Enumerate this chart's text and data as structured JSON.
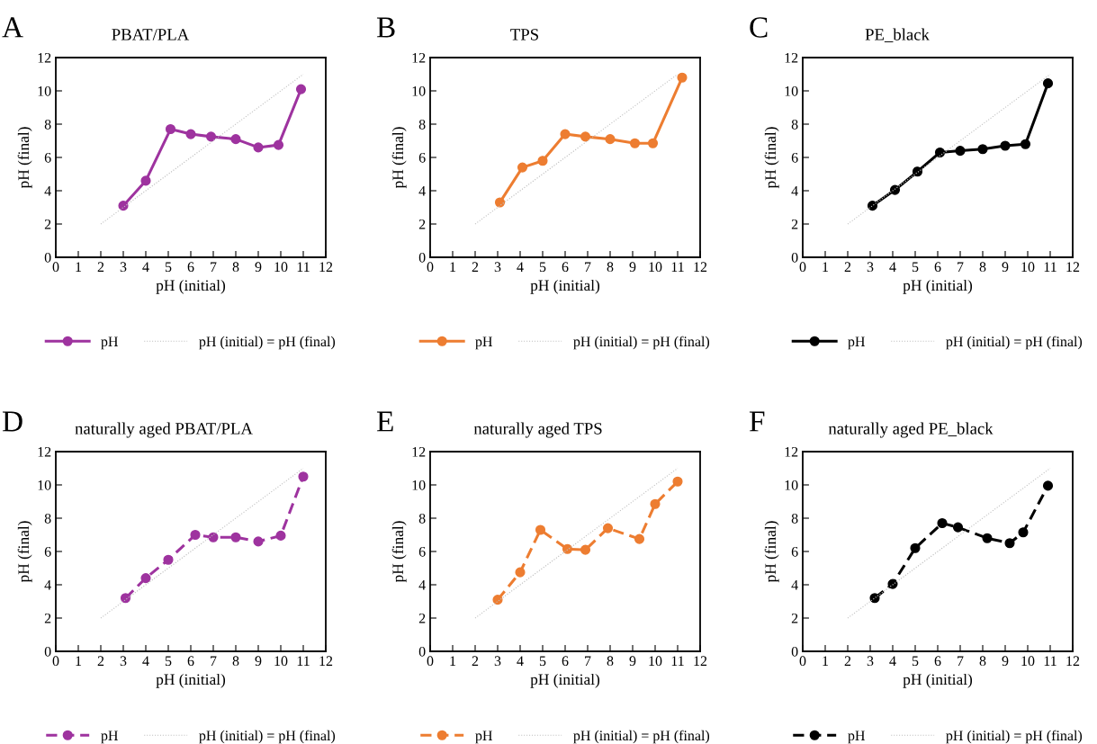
{
  "chart_data": [
    {
      "type": "line",
      "title": "PBAT/PLA",
      "annotations": [
        "A"
      ],
      "xlabel": "pH (initial)",
      "ylabel": "pH (final)",
      "xlim": [
        0,
        12
      ],
      "ylim": [
        0,
        12
      ],
      "xticks": [
        0,
        1,
        2,
        3,
        4,
        5,
        6,
        7,
        8,
        9,
        10,
        11,
        12
      ],
      "yticks": [
        0,
        2,
        4,
        6,
        8,
        10,
        12
      ],
      "grid": false,
      "legend": "bottom",
      "series": [
        {
          "name": "pH",
          "color": "#9e339f",
          "marker": "circle",
          "line_style": "solid",
          "x": [
            3.0,
            4.0,
            5.1,
            6.0,
            6.9,
            8.0,
            9.0,
            9.9,
            10.9
          ],
          "values": [
            3.1,
            4.6,
            7.7,
            7.4,
            7.25,
            7.1,
            6.6,
            6.75,
            10.1
          ]
        },
        {
          "name": "pH (initial) = pH (final)",
          "type": "line",
          "color": "#bfbfbf",
          "marker": "none",
          "line_style": "dotted",
          "x": [
            2,
            11
          ],
          "values": [
            2,
            11
          ]
        }
      ]
    },
    {
      "type": "line",
      "title": "TPS",
      "annotations": [
        "B"
      ],
      "xlabel": "pH (initial)",
      "ylabel": "pH (final)",
      "xlim": [
        0,
        12
      ],
      "ylim": [
        0,
        12
      ],
      "xticks": [
        0,
        1,
        2,
        3,
        4,
        5,
        6,
        7,
        8,
        9,
        10,
        11,
        12
      ],
      "yticks": [
        0,
        2,
        4,
        6,
        8,
        10,
        12
      ],
      "grid": false,
      "legend": "bottom",
      "series": [
        {
          "name": "pH",
          "color": "#ed7d31",
          "marker": "circle",
          "line_style": "solid",
          "x": [
            3.1,
            4.1,
            5.0,
            6.0,
            6.9,
            8.0,
            9.1,
            9.9,
            11.2
          ],
          "values": [
            3.3,
            5.4,
            5.8,
            7.4,
            7.25,
            7.1,
            6.85,
            6.85,
            10.8
          ]
        },
        {
          "name": "pH (initial) = pH (final)",
          "type": "line",
          "color": "#bfbfbf",
          "marker": "none",
          "line_style": "dotted",
          "x": [
            2,
            11
          ],
          "values": [
            2,
            11
          ]
        }
      ]
    },
    {
      "type": "line",
      "title": "PE_black",
      "annotations": [
        "C"
      ],
      "xlabel": "pH (initial)",
      "ylabel": "pH (final)",
      "xlim": [
        0,
        12
      ],
      "ylim": [
        0,
        12
      ],
      "xticks": [
        0,
        1,
        2,
        3,
        4,
        5,
        6,
        7,
        8,
        9,
        10,
        11,
        12
      ],
      "yticks": [
        0,
        2,
        4,
        6,
        8,
        10,
        12
      ],
      "grid": false,
      "legend": "bottom",
      "series": [
        {
          "name": "pH",
          "color": "#000000",
          "marker": "circle",
          "line_style": "solid",
          "x": [
            3.1,
            4.1,
            5.1,
            6.1,
            7.0,
            8.0,
            9.0,
            9.9,
            10.9
          ],
          "values": [
            3.1,
            4.05,
            5.15,
            6.3,
            6.4,
            6.5,
            6.7,
            6.8,
            10.45
          ]
        },
        {
          "name": "pH (initial) = pH (final)",
          "type": "line",
          "color": "#bfbfbf",
          "marker": "none",
          "line_style": "dotted",
          "x": [
            2,
            11
          ],
          "values": [
            2,
            11
          ]
        }
      ]
    },
    {
      "type": "line",
      "title": "naturally aged PBAT/PLA",
      "annotations": [
        "D"
      ],
      "xlabel": "pH (initial)",
      "ylabel": "pH (final)",
      "xlim": [
        0,
        12
      ],
      "ylim": [
        0,
        12
      ],
      "xticks": [
        0,
        1,
        2,
        3,
        4,
        5,
        6,
        7,
        8,
        9,
        10,
        11,
        12
      ],
      "yticks": [
        0,
        2,
        4,
        6,
        8,
        10,
        12
      ],
      "grid": false,
      "legend": "bottom",
      "series": [
        {
          "name": "pH",
          "color": "#9e339f",
          "marker": "circle",
          "line_style": "dashed",
          "x": [
            3.1,
            4.0,
            5.0,
            6.2,
            7.0,
            8.0,
            9.0,
            10.0,
            11.0
          ],
          "values": [
            3.2,
            4.4,
            5.5,
            7.0,
            6.85,
            6.85,
            6.6,
            6.95,
            10.5
          ]
        },
        {
          "name": "pH (initial) = pH (final)",
          "type": "line",
          "color": "#bfbfbf",
          "marker": "none",
          "line_style": "dotted",
          "x": [
            2,
            11
          ],
          "values": [
            2,
            11
          ]
        }
      ]
    },
    {
      "type": "line",
      "title": "naturally aged TPS",
      "annotations": [
        "E"
      ],
      "xlabel": "pH (initial)",
      "ylabel": "pH (final)",
      "xlim": [
        0,
        12
      ],
      "ylim": [
        0,
        12
      ],
      "xticks": [
        0,
        1,
        2,
        3,
        4,
        5,
        6,
        7,
        8,
        9,
        10,
        11,
        12
      ],
      "yticks": [
        0,
        2,
        4,
        6,
        8,
        10,
        12
      ],
      "grid": false,
      "legend": "bottom",
      "series": [
        {
          "name": "pH",
          "color": "#ed7d31",
          "marker": "circle",
          "line_style": "dashed",
          "x": [
            3.0,
            4.0,
            4.9,
            6.1,
            6.9,
            7.9,
            9.3,
            10.0,
            11.0
          ],
          "values": [
            3.1,
            4.75,
            7.3,
            6.15,
            6.1,
            7.4,
            6.75,
            8.85,
            10.2
          ]
        },
        {
          "name": "pH (initial) = pH (final)",
          "type": "line",
          "color": "#bfbfbf",
          "marker": "none",
          "line_style": "dotted",
          "x": [
            2,
            11
          ],
          "values": [
            2,
            11
          ]
        }
      ]
    },
    {
      "type": "line",
      "title": "naturally aged PE_black",
      "annotations": [
        "F"
      ],
      "xlabel": "pH (initial)",
      "ylabel": "pH (final)",
      "xlim": [
        0,
        12
      ],
      "ylim": [
        0,
        12
      ],
      "xticks": [
        0,
        1,
        2,
        3,
        4,
        5,
        6,
        7,
        8,
        9,
        10,
        11,
        12
      ],
      "yticks": [
        0,
        2,
        4,
        6,
        8,
        10,
        12
      ],
      "grid": false,
      "legend": "bottom",
      "series": [
        {
          "name": "pH",
          "color": "#000000",
          "marker": "circle",
          "line_style": "dashed",
          "x": [
            3.2,
            4.0,
            5.0,
            6.2,
            6.9,
            8.2,
            9.2,
            9.8,
            10.9
          ],
          "values": [
            3.2,
            4.05,
            6.2,
            7.7,
            7.45,
            6.8,
            6.5,
            7.15,
            9.95
          ]
        },
        {
          "name": "pH (initial) = pH (final)",
          "type": "line",
          "color": "#bfbfbf",
          "marker": "none",
          "line_style": "dotted",
          "x": [
            2,
            11
          ],
          "values": [
            2,
            11
          ]
        }
      ]
    }
  ]
}
